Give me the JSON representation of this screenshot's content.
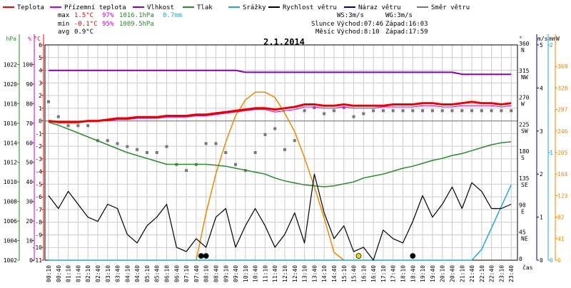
{
  "legend": [
    {
      "label": "Teplota",
      "color": "#ee0000"
    },
    {
      "label": "Přízemní teplota",
      "color": "#cc00cc"
    },
    {
      "label": "Vlhkost",
      "color": "#8800aa"
    },
    {
      "label": "Tlak",
      "color": "#2a8a2a"
    },
    {
      "label": "Srážky",
      "color": "#22aacc"
    },
    {
      "label": "Rychlost větru",
      "color": "#000000"
    },
    {
      "label": "Náraz větru",
      "color": "#000088"
    },
    {
      "label": "Směr větru",
      "color": "#777777"
    }
  ],
  "stats": {
    "rows": [
      {
        "label": "max",
        "temp": "1.5°C",
        "hum": "97%",
        "press": "1016.1hPa",
        "rain": "0.7mm"
      },
      {
        "label": "min",
        "temp": "-0.1°C",
        "hum": "95%",
        "press": "1009.5hPa",
        "rain": ""
      },
      {
        "label": "avg",
        "temp": "0.9°C",
        "hum": "",
        "press": "",
        "rain": ""
      }
    ],
    "ws": "WS:3m/s",
    "wg": "WG:3m/s",
    "sun_label": "Slunce",
    "sun_rise": "Východ:07:46",
    "sun_set": "Západ:16:03",
    "moon_label": "Měsíc",
    "moon_rise": "Východ:8:10",
    "moon_set": "Západ:17:59"
  },
  "colors": {
    "temperature": "#ee0000",
    "ground_temp": "#cc00cc",
    "humidity": "#8800aa",
    "pressure": "#2a8a2a",
    "rain": "#22aacc",
    "wind": "#000000",
    "direction": "#777777",
    "sun": "#ee8800",
    "grid": "#cccccc",
    "celsius_axis": "#ee0000",
    "hpa_axis": "#2a8a2a",
    "pct_axis": "#cc00cc",
    "ms_axis": "#000088",
    "mm_axis": "#22aacc",
    "w_axis": "#ee8800"
  },
  "chart_data": {
    "type": "line",
    "title": "2.1.2014",
    "xlabel": "čas",
    "x": [
      "00:10",
      "00:40",
      "01:10",
      "01:40",
      "02:10",
      "02:40",
      "03:10",
      "03:40",
      "04:10",
      "04:40",
      "05:10",
      "05:40",
      "06:10",
      "06:40",
      "07:10",
      "07:40",
      "08:10",
      "08:40",
      "09:10",
      "09:40",
      "10:10",
      "10:40",
      "11:10",
      "11:40",
      "12:10",
      "12:40",
      "13:10",
      "13:40",
      "14:10",
      "14:40",
      "15:10",
      "15:40",
      "16:10",
      "16:40",
      "17:10",
      "17:40",
      "18:10",
      "18:40",
      "19:10",
      "19:40",
      "20:10",
      "20:40",
      "21:10",
      "21:40",
      "22:10",
      "22:40",
      "23:10",
      "23:40"
    ],
    "axes": {
      "celsius": {
        "unit": "°C",
        "ylim": [
          -11,
          6
        ],
        "ticks": [
          "6",
          "5",
          "4",
          "3",
          "2",
          "1",
          "0",
          "-1",
          "-2",
          "-3",
          "-4",
          "-5",
          "-6",
          "-7",
          "-8",
          "-9",
          "-10",
          "-11"
        ]
      },
      "hpa": {
        "unit": "hPa",
        "ylim": [
          1002,
          1024
        ],
        "ticks": [
          "1022",
          "1020",
          "1018",
          "1016",
          "1014",
          "1012",
          "1010",
          "1008",
          "1006",
          "1004",
          "1002"
        ]
      },
      "percent": {
        "unit": "%",
        "ylim": [
          0,
          110
        ],
        "ticks": [
          "100",
          "90",
          "80",
          "70",
          "60",
          "50",
          "40",
          "30",
          "20",
          "10",
          "0"
        ]
      },
      "direction": {
        "unit": "°",
        "ylim": [
          0,
          360
        ],
        "ticks": [
          "360",
          "315",
          "270",
          "225",
          "180",
          "135",
          "90",
          "45",
          "0"
        ],
        "compass": [
          "N",
          "NW",
          "W",
          "SW",
          "S",
          "SE",
          "E",
          "NE",
          ""
        ]
      },
      "wind": {
        "unit": "m/s",
        "ylim": [
          0,
          5
        ],
        "ticks": [
          "5",
          "4",
          "3",
          "2",
          "1",
          "0"
        ]
      },
      "rain": {
        "unit": "mm",
        "ylim": [
          0,
          2
        ],
        "ticks": [
          "2",
          "1",
          "0"
        ]
      },
      "solar": {
        "unit": "W",
        "ylim": [
          0,
          410
        ],
        "ticks": [
          "369",
          "328",
          "287",
          "246",
          "205",
          "164",
          "123",
          "82",
          "41",
          "0"
        ]
      }
    },
    "series": [
      {
        "name": "Teplota",
        "axis": "celsius",
        "values": [
          0.0,
          -0.1,
          -0.1,
          -0.1,
          0.0,
          0.0,
          0.1,
          0.2,
          0.2,
          0.3,
          0.3,
          0.3,
          0.4,
          0.4,
          0.4,
          0.5,
          0.5,
          0.6,
          0.7,
          0.8,
          0.9,
          1.0,
          1.0,
          0.9,
          1.0,
          1.1,
          1.3,
          1.3,
          1.2,
          1.2,
          1.3,
          1.2,
          1.2,
          1.2,
          1.2,
          1.3,
          1.3,
          1.3,
          1.4,
          1.4,
          1.3,
          1.3,
          1.4,
          1.5,
          1.4,
          1.4,
          1.3,
          1.4
        ]
      },
      {
        "name": "Přízemní teplota",
        "axis": "celsius",
        "values": [
          0.0,
          -0.1,
          -0.1,
          -0.1,
          0.0,
          0.0,
          0.0,
          0.1,
          0.1,
          0.2,
          0.2,
          0.2,
          0.3,
          0.3,
          0.3,
          0.4,
          0.4,
          0.5,
          0.6,
          0.7,
          0.8,
          0.9,
          0.9,
          0.7,
          0.8,
          0.9,
          1.1,
          1.1,
          1.0,
          1.0,
          1.1,
          1.0,
          1.0,
          1.0,
          1.1,
          1.1,
          1.1,
          1.1,
          1.2,
          1.2,
          1.1,
          1.1,
          1.2,
          1.2,
          1.2,
          1.2,
          1.1,
          1.2
        ]
      },
      {
        "name": "Vlhkost",
        "axis": "percent",
        "values": [
          97,
          97,
          97,
          97,
          97,
          97,
          97,
          97,
          97,
          97,
          97,
          97,
          97,
          97,
          97,
          97,
          97,
          97,
          97,
          97,
          96,
          96,
          96,
          96,
          96,
          96,
          96,
          96,
          96,
          96,
          96,
          96,
          96,
          96,
          96,
          96,
          96,
          96,
          96,
          96,
          96,
          96,
          95,
          95,
          95,
          95,
          95,
          95
        ]
      },
      {
        "name": "Tlak",
        "axis": "hpa",
        "values": [
          1016.1,
          1015.8,
          1015.4,
          1015.0,
          1014.6,
          1014.2,
          1013.8,
          1013.4,
          1013.0,
          1012.7,
          1012.4,
          1012.1,
          1011.8,
          1011.8,
          1011.8,
          1011.8,
          1011.8,
          1011.7,
          1011.6,
          1011.4,
          1011.2,
          1011.0,
          1010.8,
          1010.4,
          1010.1,
          1009.9,
          1009.7,
          1009.6,
          1009.5,
          1009.6,
          1009.8,
          1010.0,
          1010.4,
          1010.6,
          1010.8,
          1011.1,
          1011.4,
          1011.6,
          1011.9,
          1012.2,
          1012.4,
          1012.7,
          1012.9,
          1013.2,
          1013.5,
          1013.8,
          1014.0,
          1014.1
        ]
      },
      {
        "name": "Rychlost větru",
        "axis": "wind",
        "values": [
          1.5,
          1.2,
          1.6,
          1.3,
          1.0,
          0.9,
          1.3,
          1.2,
          0.6,
          0.4,
          0.8,
          1.0,
          1.3,
          0.3,
          0.2,
          0.5,
          0.3,
          1.0,
          1.2,
          0.3,
          0.8,
          1.2,
          0.8,
          0.3,
          0.6,
          1.1,
          0.4,
          2.0,
          1.1,
          0.5,
          0.8,
          0.2,
          0.3,
          0.0,
          0.7,
          0.5,
          0.4,
          0.9,
          1.5,
          1.0,
          1.3,
          1.7,
          1.2,
          1.8,
          1.6,
          1.2,
          1.2,
          1.3
        ]
      },
      {
        "name": "Směr větru",
        "axis": "direction",
        "values": [
          265,
          240,
          225,
          225,
          225,
          200,
          200,
          195,
          190,
          185,
          180,
          180,
          190,
          160,
          150,
          160,
          195,
          195,
          180,
          160,
          150,
          180,
          210,
          220,
          185,
          200,
          250,
          255,
          245,
          250,
          255,
          240,
          245,
          250,
          250,
          250,
          250,
          250,
          250,
          250,
          250,
          250,
          250,
          250,
          250,
          250,
          250,
          250
        ]
      },
      {
        "name": "Srážky",
        "axis": "rain",
        "values": [
          0,
          0,
          0,
          0,
          0,
          0,
          0,
          0,
          0,
          0,
          0,
          0,
          0,
          0,
          0,
          0,
          0,
          0,
          0,
          0,
          0,
          0,
          0,
          0,
          0,
          0,
          0,
          0,
          0,
          0,
          0,
          0,
          0,
          0,
          0,
          0,
          0,
          0,
          0,
          0,
          0,
          0,
          0,
          0,
          0.1,
          0.3,
          0.5,
          0.7
        ]
      },
      {
        "name": "",
        "axis": "solar",
        "values": [
          null,
          null,
          null,
          null,
          null,
          null,
          null,
          null,
          null,
          null,
          null,
          null,
          null,
          null,
          null,
          0,
          90,
          165,
          225,
          275,
          305,
          320,
          320,
          310,
          280,
          245,
          195,
          140,
          80,
          15,
          0,
          null,
          null,
          null,
          null,
          null,
          null,
          null,
          null,
          null,
          null,
          null,
          null,
          null,
          null,
          null,
          null,
          null
        ]
      }
    ],
    "grid": true,
    "legend_position": "top"
  }
}
